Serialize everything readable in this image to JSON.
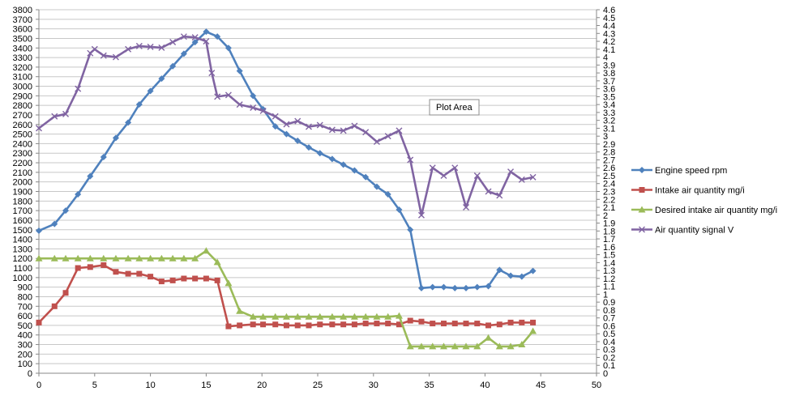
{
  "chart_data": {
    "type": "line",
    "x_axis": {
      "min": 0,
      "max": 50,
      "step": 5
    },
    "y_left": {
      "min": 0,
      "max": 3800,
      "step": 100
    },
    "y_right": {
      "min": 0,
      "max": 4.6,
      "step": 0.1
    },
    "grid": "horizontal",
    "legend_position": "right",
    "tooltip": "Plot Area",
    "series": [
      {
        "name": "Engine speed rpm",
        "axis": "left",
        "color": "#4f81bd",
        "marker": "diamond",
        "x": [
          0,
          1.4,
          2.4,
          3.5,
          4.6,
          5.8,
          6.9,
          8.0,
          9.0,
          10.0,
          11.0,
          12.0,
          13.0,
          14.0,
          15.0,
          16.0,
          17.0,
          18.0,
          19.2,
          20.1,
          21.2,
          22.2,
          23.2,
          24.2,
          25.2,
          26.3,
          27.3,
          28.3,
          29.3,
          30.3,
          31.3,
          32.3,
          33.3,
          34.3,
          35.3,
          36.3,
          37.3,
          38.3,
          39.3,
          40.3,
          41.3,
          42.3,
          43.3,
          44.3
        ],
        "y": [
          1490,
          1560,
          1700,
          1870,
          2060,
          2260,
          2460,
          2620,
          2810,
          2950,
          3080,
          3210,
          3340,
          3460,
          3570,
          3520,
          3400,
          3160,
          2900,
          2760,
          2580,
          2500,
          2430,
          2360,
          2300,
          2240,
          2180,
          2120,
          2050,
          1950,
          1870,
          1710,
          1500,
          890,
          900,
          900,
          890,
          890,
          900,
          910,
          1080,
          1020,
          1010,
          1070
        ]
      },
      {
        "name": "Intake air quantity mg/i",
        "axis": "left",
        "color": "#c0504d",
        "marker": "square",
        "x": [
          0,
          1.4,
          2.4,
          3.5,
          4.6,
          5.8,
          6.9,
          8.0,
          9.0,
          10.0,
          11.0,
          12.0,
          13.0,
          14.0,
          15.0,
          16.0,
          17.0,
          18.0,
          19.2,
          20.1,
          21.2,
          22.2,
          23.2,
          24.2,
          25.2,
          26.3,
          27.3,
          28.3,
          29.3,
          30.3,
          31.3,
          32.3,
          33.3,
          34.3,
          35.3,
          36.3,
          37.3,
          38.3,
          39.3,
          40.3,
          41.3,
          42.3,
          43.3,
          44.3
        ],
        "y": [
          530,
          700,
          840,
          1100,
          1110,
          1130,
          1060,
          1040,
          1040,
          1010,
          960,
          970,
          990,
          990,
          990,
          970,
          490,
          500,
          510,
          510,
          510,
          500,
          500,
          500,
          510,
          510,
          510,
          510,
          520,
          520,
          520,
          510,
          550,
          540,
          520,
          520,
          520,
          520,
          520,
          500,
          510,
          530,
          530,
          530
        ]
      },
      {
        "name": "Desired intake air quantity mg/i",
        "axis": "left",
        "color": "#9bbb59",
        "marker": "triangle",
        "x": [
          0,
          1.4,
          2.4,
          3.5,
          4.6,
          5.8,
          6.9,
          8.0,
          9.0,
          10.0,
          11.0,
          12.0,
          13.0,
          14.0,
          15.0,
          16.0,
          17.0,
          18.0,
          19.2,
          20.1,
          21.2,
          22.2,
          23.2,
          24.2,
          25.2,
          26.3,
          27.3,
          28.3,
          29.3,
          30.3,
          31.3,
          32.3,
          33.3,
          34.3,
          35.3,
          36.3,
          37.3,
          38.3,
          39.3,
          40.3,
          41.3,
          42.3,
          43.3,
          44.3
        ],
        "y": [
          1200,
          1200,
          1200,
          1200,
          1200,
          1200,
          1200,
          1200,
          1200,
          1200,
          1200,
          1200,
          1200,
          1200,
          1280,
          1160,
          940,
          650,
          590,
          590,
          590,
          590,
          590,
          590,
          590,
          590,
          590,
          590,
          590,
          590,
          590,
          600,
          280,
          280,
          280,
          280,
          280,
          280,
          280,
          370,
          280,
          280,
          300,
          440
        ]
      },
      {
        "name": "Air quantity signal V",
        "axis": "right",
        "color": "#8064a2",
        "marker": "x",
        "x": [
          0,
          1.4,
          2.4,
          3.5,
          4.6,
          5.0,
          5.8,
          6.9,
          8.0,
          9.0,
          10.0,
          11.0,
          12.0,
          13.0,
          14.0,
          15.0,
          15.5,
          16.0,
          17.0,
          18.0,
          19.2,
          20.1,
          21.2,
          22.2,
          23.2,
          24.2,
          25.2,
          26.3,
          27.3,
          28.3,
          29.3,
          30.3,
          31.3,
          32.3,
          33.3,
          34.3,
          35.3,
          36.3,
          37.3,
          38.3,
          39.3,
          40.3,
          41.3,
          42.3,
          43.3,
          44.3
        ],
        "y": [
          3.1,
          3.25,
          3.28,
          3.6,
          4.05,
          4.1,
          4.02,
          4.0,
          4.1,
          4.14,
          4.13,
          4.12,
          4.19,
          4.26,
          4.25,
          4.2,
          3.8,
          3.5,
          3.52,
          3.4,
          3.36,
          3.32,
          3.25,
          3.15,
          3.19,
          3.12,
          3.14,
          3.08,
          3.07,
          3.13,
          3.05,
          2.93,
          3.0,
          3.07,
          2.7,
          2.0,
          2.6,
          2.5,
          2.6,
          2.1,
          2.5,
          2.3,
          2.25,
          2.55,
          2.45,
          2.48
        ]
      }
    ]
  }
}
